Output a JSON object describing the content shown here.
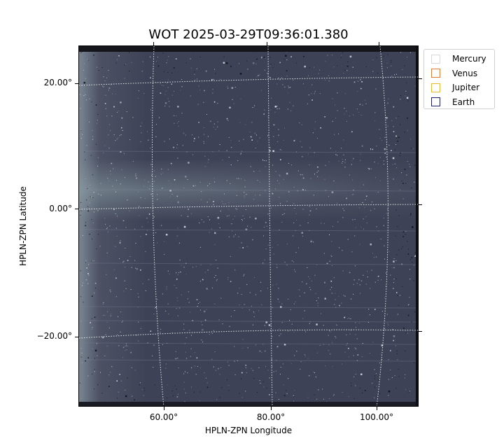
{
  "title": "WOT 2025-03-29T09:36:01.380",
  "xlabel": "HPLN-ZPN Longitude",
  "ylabel": "HPLN-ZPN Latitude",
  "yticks": [
    "20.00°",
    "0.00°",
    "−20.00°"
  ],
  "xticks": [
    "60.00°",
    "80.00°",
    "100.00°"
  ],
  "legend": [
    {
      "label": "Mercury",
      "color": "#d8d8d8"
    },
    {
      "label": "Venus",
      "color": "#e07b39"
    },
    {
      "label": "Jupiter",
      "color": "#e8b830"
    },
    {
      "label": "Earth",
      "color": "#1a1a6e"
    }
  ],
  "image": {
    "type": "heliospheric imager frame",
    "background_color": "#3e4256",
    "band_color": "#8fa3a8"
  }
}
